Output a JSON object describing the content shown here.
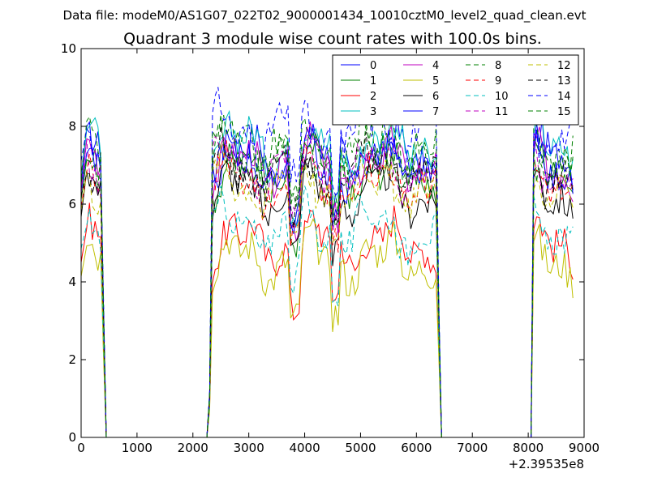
{
  "suptitle": "Data file: modeM0/AS1G07_022T02_9000001434_10010cztM0_level2_quad_clean.evt",
  "chart_data": {
    "type": "line",
    "title": "Quadrant 3 module wise count rates with 100.0s bins.",
    "xlabel": "",
    "ylabel": "",
    "x_offset_label": "+2.39535e8",
    "xlim": [
      0,
      9000
    ],
    "ylim": [
      0,
      10
    ],
    "xticks": [
      0,
      1000,
      2000,
      3000,
      4000,
      5000,
      6000,
      7000,
      8000,
      9000
    ],
    "yticks": [
      0,
      2,
      4,
      6,
      8,
      10
    ],
    "grid": false,
    "legend_position": "top-right",
    "legend_columns": 4,
    "segments": [
      {
        "x_start": 100,
        "x_end": 400,
        "step": 50
      },
      {
        "x_start": 2300,
        "x_end": 6400,
        "step": 50
      },
      {
        "x_start": 8100,
        "x_end": 8800,
        "step": 50
      }
    ],
    "zero_x": [
      450,
      2250,
      6450,
      8050
    ],
    "series": [
      {
        "name": "0",
        "color": "#0000ff",
        "dash": "solid",
        "level": 7.2
      },
      {
        "name": "1",
        "color": "#008000",
        "dash": "solid",
        "level": 6.8
      },
      {
        "name": "2",
        "color": "#ff0000",
        "dash": "solid",
        "level": 5.0
      },
      {
        "name": "3",
        "color": "#00bfbf",
        "dash": "solid",
        "level": 7.5
      },
      {
        "name": "4",
        "color": "#bf00bf",
        "dash": "solid",
        "level": 7.0
      },
      {
        "name": "5",
        "color": "#bfbf00",
        "dash": "solid",
        "level": 4.6
      },
      {
        "name": "6",
        "color": "#000000",
        "dash": "solid",
        "level": 6.3
      },
      {
        "name": "7",
        "color": "#0000ff",
        "dash": "solid",
        "level": 7.0
      },
      {
        "name": "8",
        "color": "#008000",
        "dash": "dashed",
        "level": 7.4
      },
      {
        "name": "9",
        "color": "#ff0000",
        "dash": "dashed",
        "level": 6.6
      },
      {
        "name": "10",
        "color": "#00bfbf",
        "dash": "dashed",
        "level": 5.4
      },
      {
        "name": "11",
        "color": "#bf00bf",
        "dash": "dashed",
        "level": 7.0
      },
      {
        "name": "12",
        "color": "#bfbf00",
        "dash": "dashed",
        "level": 6.5
      },
      {
        "name": "13",
        "color": "#000000",
        "dash": "dashed",
        "level": 6.9
      },
      {
        "name": "14",
        "color": "#0000ff",
        "dash": "dashed",
        "level": 7.9
      },
      {
        "name": "15",
        "color": "#008000",
        "dash": "dashed",
        "level": 7.3
      }
    ]
  }
}
